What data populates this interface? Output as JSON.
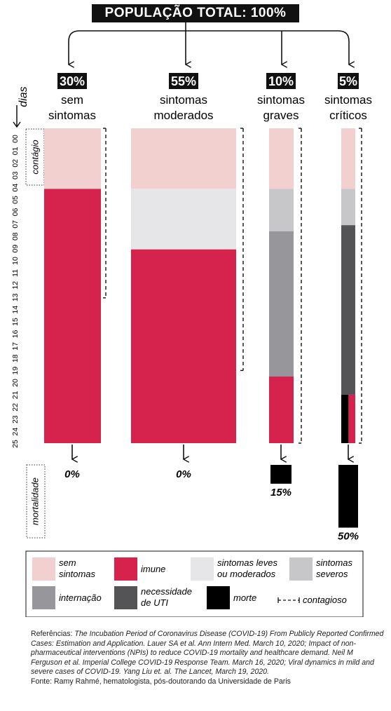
{
  "title": "POPULAÇÃO TOTAL: 100%",
  "axis": {
    "ylabel": "dias",
    "days": [
      "00",
      "01",
      "02",
      "03",
      "04",
      "05",
      "06",
      "07",
      "08",
      "09",
      "10",
      "11",
      "12",
      "13",
      "14",
      "15",
      "16",
      "17",
      "18",
      "19",
      "20",
      "21",
      "22",
      "23",
      "24",
      "25"
    ],
    "contagio_label": "contágio",
    "mortalidade_label": "mortalidade"
  },
  "colors": {
    "sem_sintomas": "#f2d0d0",
    "imune": "#d6234d",
    "sintomas_leves": "#e6e6e8",
    "sintomas_severos": "#c7c7ca",
    "internacao": "#97979b",
    "uti": "#545456",
    "morte": "#000000"
  },
  "chart_data": {
    "type": "bar",
    "title": "POPULAÇÃO TOTAL: 100%",
    "ylabel": "dias",
    "ylim": [
      0,
      26
    ],
    "groups": [
      {
        "pct": "30%",
        "name_line1": "sem",
        "name_line2": "sintomas",
        "mortality": "0%",
        "mortality_value": 0,
        "segments": [
          {
            "state": "sem sintomas",
            "start": 0,
            "end": 5
          },
          {
            "state": "imune",
            "start": 5,
            "end": 26
          }
        ],
        "contagious": [
          0,
          14
        ]
      },
      {
        "pct": "55%",
        "name_line1": "sintomas",
        "name_line2": "moderados",
        "mortality": "0%",
        "mortality_value": 0,
        "segments": [
          {
            "state": "sem sintomas",
            "start": 0,
            "end": 5
          },
          {
            "state": "sintomas leves ou moderados",
            "start": 5,
            "end": 10
          },
          {
            "state": "imune",
            "start": 10,
            "end": 26
          }
        ],
        "contagious": [
          0,
          20
        ]
      },
      {
        "pct": "10%",
        "name_line1": "sintomas",
        "name_line2": "graves",
        "mortality": "15%",
        "mortality_value": 15,
        "segments": [
          {
            "state": "sem sintomas",
            "start": 0,
            "end": 5
          },
          {
            "state": "sintomas severos",
            "start": 5,
            "end": 8.5
          },
          {
            "state": "internação",
            "start": 8.5,
            "end": 20.5
          },
          {
            "state": "imune",
            "start": 20.5,
            "end": 26
          }
        ],
        "contagious": [
          0,
          26
        ]
      },
      {
        "pct": "5%",
        "name_line1": "sintomas",
        "name_line2": "críticos",
        "mortality": "50%",
        "mortality_value": 50,
        "segments": [
          {
            "state": "sem sintomas",
            "start": 0,
            "end": 5
          },
          {
            "state": "sintomas severos",
            "start": 5,
            "end": 8
          },
          {
            "state": "necessidade de UTI",
            "start": 8,
            "end": 22
          },
          {
            "state": "morte / imune",
            "start": 22,
            "end": 26
          }
        ],
        "contagious": [
          0,
          26
        ]
      }
    ]
  },
  "legend": [
    {
      "key": "sem_sintomas",
      "line1": "sem",
      "line2": "sintomas"
    },
    {
      "key": "imune",
      "line1": "imune",
      "line2": ""
    },
    {
      "key": "sintomas_leves",
      "line1": "sintomas leves",
      "line2": "ou moderados"
    },
    {
      "key": "sintomas_severos",
      "line1": "sintomas",
      "line2": "severos"
    },
    {
      "key": "internacao",
      "line1": "internação",
      "line2": ""
    },
    {
      "key": "uti",
      "line1": "necessidade",
      "line2": "de UTI"
    },
    {
      "key": "morte",
      "line1": "morte",
      "line2": ""
    },
    {
      "key": "contagioso",
      "line1": "contagioso",
      "line2": ""
    }
  ],
  "references": {
    "prefix": "Referências: ",
    "ref1": "The Incubation Period of Coronavirus Disease (COVID-19) From Publicly Reported Confirmed Cases: Estimation and Application. Lauer SA et al. Ann Intern Med. March 10, 2020;",
    "ref2": "Impact of non-pharmaceutical interventions (NPIs) to reduce COVID-19 mortality and healthcare demand. Neil M Ferguson et al. Imperial College COVID-19 Response Team. March 16, 2020;",
    "ref3": "Viral dynamics in mild and severe cases of COVID-19. Yang Liu et. al. The Lancet, March 19, 2020.",
    "source": "Fonte: Ramy Rahmé, hematologista, pós-doutorando da Universidade de Paris"
  }
}
